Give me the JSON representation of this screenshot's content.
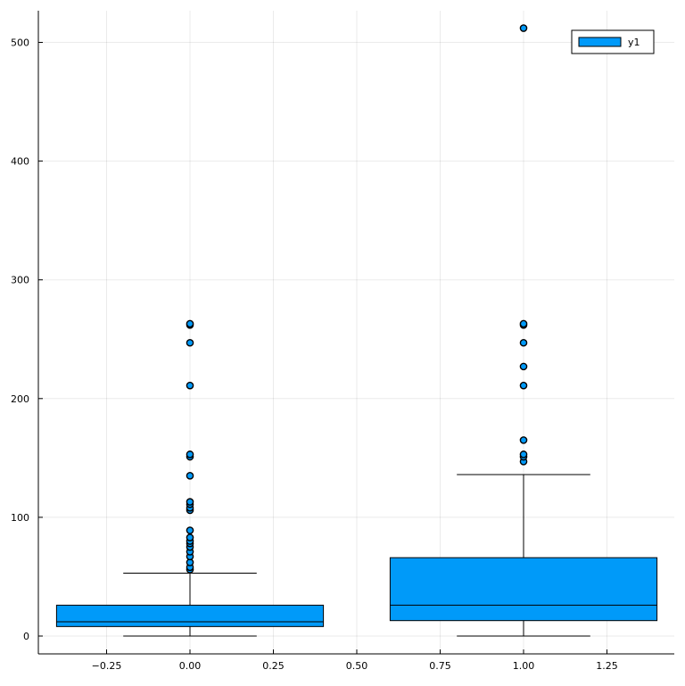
{
  "chart_data": {
    "type": "boxplot",
    "title": "",
    "xlabel": "",
    "ylabel": "",
    "xlim": [
      -0.42,
      1.45
    ],
    "ylim": [
      -15,
      527
    ],
    "grid": true,
    "legend": {
      "position": "top-right",
      "entries": [
        "y1"
      ]
    },
    "x_ticks": [
      -0.25,
      0.0,
      0.25,
      0.5,
      0.75,
      1.0,
      1.25
    ],
    "x_tick_labels": [
      "−0.25",
      "0.00",
      "0.25",
      "0.50",
      "0.75",
      "1.00",
      "1.25"
    ],
    "y_ticks": [
      0,
      100,
      200,
      300,
      400,
      500
    ],
    "y_tick_labels": [
      "0",
      "100",
      "200",
      "300",
      "400",
      "500"
    ],
    "series": [
      {
        "name": "y1",
        "color": "#009af9",
        "boxes": [
          {
            "x": 0.0,
            "half_width": 0.4,
            "whisker_half_width": 0.2,
            "min": 0,
            "q1": 8,
            "median": 12,
            "q3": 26,
            "max": 53,
            "outliers": [
              56,
              58,
              62,
              67,
              71,
              75,
              78,
              80,
              83,
              89,
              106,
              108,
              111,
              113,
              135,
              151,
              153,
              211,
              247,
              262,
              263
            ]
          },
          {
            "x": 1.0,
            "half_width": 0.4,
            "whisker_half_width": 0.2,
            "min": 0,
            "q1": 13,
            "median": 26,
            "q3": 66,
            "max": 136,
            "outliers": [
              147,
              151,
              153,
              165,
              211,
              227,
              247,
              262,
              263,
              512
            ]
          }
        ]
      }
    ]
  }
}
